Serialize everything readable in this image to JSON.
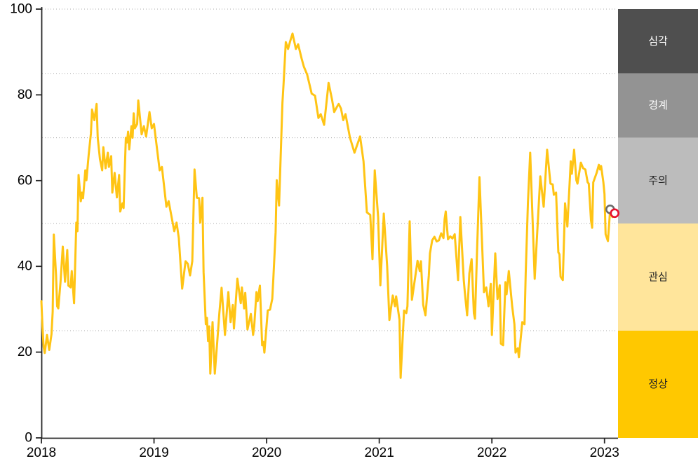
{
  "chart_data": {
    "type": "line",
    "title": "",
    "x_axis": {
      "min": 2018,
      "max": 2023.12,
      "ticks": [
        2018,
        2019,
        2020,
        2021,
        2022,
        2023
      ]
    },
    "y_axis": {
      "min": 0,
      "max": 100,
      "ticks": [
        0,
        20,
        40,
        60,
        80,
        100
      ]
    },
    "grid": {
      "horizontal_dotted_at": [
        25,
        50,
        70,
        85,
        100
      ],
      "color": "#a8a8a8"
    },
    "axis_color": "#262626",
    "tick_label_color": "#000000",
    "legend_position": "right-bands",
    "bands": [
      {
        "label": "심각",
        "from": 85,
        "to": 100,
        "color": "#4f4f4f",
        "text_color": "#ffffff"
      },
      {
        "label": "경계",
        "from": 70,
        "to": 85,
        "color": "#939393",
        "text_color": "#ffffff"
      },
      {
        "label": "주의",
        "from": 50,
        "to": 70,
        "color": "#bcbcbc",
        "text_color": "#262626"
      },
      {
        "label": "관심",
        "from": 25,
        "to": 50,
        "color": "#ffe59b",
        "text_color": "#262626"
      },
      {
        "label": "정상",
        "from": 0,
        "to": 25,
        "color": "#ffc800",
        "text_color": "#262626"
      }
    ],
    "series": [
      {
        "name": "index",
        "color": "#ffc414",
        "points": [
          [
            2018.0,
            31.9
          ],
          [
            2018.01,
            25.7
          ],
          [
            2018.02,
            21.2
          ],
          [
            2018.03,
            19.8
          ],
          [
            2018.05,
            24.0
          ],
          [
            2018.07,
            20.5
          ],
          [
            2018.09,
            24.2
          ],
          [
            2018.1,
            29.4
          ],
          [
            2018.11,
            47.4
          ],
          [
            2018.13,
            37.9
          ],
          [
            2018.14,
            30.7
          ],
          [
            2018.15,
            30.2
          ],
          [
            2018.17,
            36.4
          ],
          [
            2018.19,
            44.6
          ],
          [
            2018.21,
            36.4
          ],
          [
            2018.23,
            43.8
          ],
          [
            2018.24,
            35.5
          ],
          [
            2018.26,
            35.1
          ],
          [
            2018.27,
            38.9
          ],
          [
            2018.29,
            31.4
          ],
          [
            2018.31,
            50.2
          ],
          [
            2018.32,
            48.2
          ],
          [
            2018.33,
            61.3
          ],
          [
            2018.35,
            55.2
          ],
          [
            2018.36,
            57.2
          ],
          [
            2018.37,
            55.9
          ],
          [
            2018.39,
            62.4
          ],
          [
            2018.4,
            60.1
          ],
          [
            2018.42,
            66.0
          ],
          [
            2018.44,
            71.0
          ],
          [
            2018.45,
            76.6
          ],
          [
            2018.47,
            74.1
          ],
          [
            2018.49,
            77.9
          ],
          [
            2018.5,
            70.0
          ],
          [
            2018.52,
            65.0
          ],
          [
            2018.54,
            62.4
          ],
          [
            2018.55,
            67.8
          ],
          [
            2018.57,
            62.9
          ],
          [
            2018.59,
            66.5
          ],
          [
            2018.6,
            63.2
          ],
          [
            2018.62,
            65.7
          ],
          [
            2018.63,
            57.2
          ],
          [
            2018.65,
            61.8
          ],
          [
            2018.67,
            56.1
          ],
          [
            2018.69,
            61.3
          ],
          [
            2018.7,
            52.8
          ],
          [
            2018.72,
            54.7
          ],
          [
            2018.73,
            53.6
          ],
          [
            2018.74,
            62.0
          ],
          [
            2018.75,
            70.0
          ],
          [
            2018.76,
            68.9
          ],
          [
            2018.77,
            71.4
          ],
          [
            2018.78,
            67.3
          ],
          [
            2018.8,
            72.7
          ],
          [
            2018.81,
            70.0
          ],
          [
            2018.82,
            75.7
          ],
          [
            2018.83,
            72.2
          ],
          [
            2018.85,
            73.2
          ],
          [
            2018.86,
            78.7
          ],
          [
            2018.89,
            70.8
          ],
          [
            2018.91,
            72.7
          ],
          [
            2018.93,
            70.3
          ],
          [
            2018.96,
            76.0
          ],
          [
            2018.98,
            72.2
          ],
          [
            2019.0,
            73.2
          ],
          [
            2019.05,
            62.4
          ],
          [
            2019.07,
            63.2
          ],
          [
            2019.11,
            53.9
          ],
          [
            2019.13,
            55.2
          ],
          [
            2019.18,
            48.2
          ],
          [
            2019.2,
            50.2
          ],
          [
            2019.22,
            46.6
          ],
          [
            2019.25,
            34.8
          ],
          [
            2019.28,
            41.2
          ],
          [
            2019.3,
            40.6
          ],
          [
            2019.32,
            37.9
          ],
          [
            2019.34,
            41.2
          ],
          [
            2019.36,
            62.6
          ],
          [
            2019.38,
            56.0
          ],
          [
            2019.4,
            55.9
          ],
          [
            2019.41,
            50.2
          ],
          [
            2019.43,
            56.0
          ],
          [
            2019.44,
            38.7
          ],
          [
            2019.46,
            26.5
          ],
          [
            2019.47,
            28.0
          ],
          [
            2019.48,
            22.6
          ],
          [
            2019.49,
            26.0
          ],
          [
            2019.5,
            15.0
          ],
          [
            2019.52,
            27.0
          ],
          [
            2019.54,
            15.0
          ],
          [
            2019.56,
            22.0
          ],
          [
            2019.58,
            29.1
          ],
          [
            2019.6,
            35.0
          ],
          [
            2019.63,
            24.0
          ],
          [
            2019.66,
            34.0
          ],
          [
            2019.68,
            27.0
          ],
          [
            2019.7,
            31.0
          ],
          [
            2019.71,
            25.5
          ],
          [
            2019.72,
            29.4
          ],
          [
            2019.74,
            37.1
          ],
          [
            2019.77,
            31.4
          ],
          [
            2019.78,
            35.1
          ],
          [
            2019.8,
            30.2
          ],
          [
            2019.81,
            33.8
          ],
          [
            2019.83,
            25.3
          ],
          [
            2019.86,
            28.9
          ],
          [
            2019.88,
            24.0
          ],
          [
            2019.89,
            26.1
          ],
          [
            2019.91,
            34.0
          ],
          [
            2019.92,
            31.9
          ],
          [
            2019.94,
            35.5
          ],
          [
            2019.96,
            21.6
          ],
          [
            2019.97,
            22.4
          ],
          [
            2019.98,
            19.9
          ],
          [
            2020.01,
            29.7
          ],
          [
            2020.03,
            29.9
          ],
          [
            2020.05,
            32.4
          ],
          [
            2020.06,
            37.3
          ],
          [
            2020.08,
            48.0
          ],
          [
            2020.09,
            60.1
          ],
          [
            2020.11,
            54.2
          ],
          [
            2020.14,
            78.1
          ],
          [
            2020.15,
            82.5
          ],
          [
            2020.17,
            92.3
          ],
          [
            2020.19,
            90.7
          ],
          [
            2020.21,
            92.6
          ],
          [
            2020.23,
            94.3
          ],
          [
            2020.26,
            90.7
          ],
          [
            2020.28,
            91.8
          ],
          [
            2020.31,
            88.5
          ],
          [
            2020.33,
            86.6
          ],
          [
            2020.36,
            84.7
          ],
          [
            2020.4,
            80.3
          ],
          [
            2020.43,
            79.8
          ],
          [
            2020.46,
            74.6
          ],
          [
            2020.48,
            75.5
          ],
          [
            2020.51,
            73.0
          ],
          [
            2020.55,
            82.8
          ],
          [
            2020.58,
            79.0
          ],
          [
            2020.6,
            76.0
          ],
          [
            2020.62,
            77.0
          ],
          [
            2020.64,
            77.9
          ],
          [
            2020.66,
            76.8
          ],
          [
            2020.68,
            74.1
          ],
          [
            2020.7,
            75.5
          ],
          [
            2020.74,
            70.0
          ],
          [
            2020.78,
            66.5
          ],
          [
            2020.83,
            70.3
          ],
          [
            2020.86,
            64.5
          ],
          [
            2020.89,
            52.6
          ],
          [
            2020.92,
            52.0
          ],
          [
            2020.94,
            41.7
          ],
          [
            2020.96,
            62.4
          ],
          [
            2020.99,
            51.5
          ],
          [
            2021.01,
            35.6
          ],
          [
            2021.04,
            52.3
          ],
          [
            2021.07,
            40.0
          ],
          [
            2021.09,
            27.5
          ],
          [
            2021.12,
            33.2
          ],
          [
            2021.14,
            30.7
          ],
          [
            2021.15,
            33.0
          ],
          [
            2021.18,
            27.5
          ],
          [
            2021.19,
            14.0
          ],
          [
            2021.22,
            29.7
          ],
          [
            2021.24,
            29.1
          ],
          [
            2021.25,
            30.7
          ],
          [
            2021.27,
            50.5
          ],
          [
            2021.29,
            32.2
          ],
          [
            2021.34,
            41.3
          ],
          [
            2021.36,
            38.9
          ],
          [
            2021.37,
            41.2
          ],
          [
            2021.39,
            31.0
          ],
          [
            2021.41,
            28.6
          ],
          [
            2021.44,
            37.9
          ],
          [
            2021.45,
            43.0
          ],
          [
            2021.47,
            46.1
          ],
          [
            2021.49,
            46.9
          ],
          [
            2021.51,
            45.8
          ],
          [
            2021.53,
            46.1
          ],
          [
            2021.55,
            47.7
          ],
          [
            2021.57,
            46.6
          ],
          [
            2021.58,
            51.0
          ],
          [
            2021.59,
            52.8
          ],
          [
            2021.61,
            46.3
          ],
          [
            2021.63,
            47.0
          ],
          [
            2021.65,
            46.5
          ],
          [
            2021.67,
            47.5
          ],
          [
            2021.7,
            36.8
          ],
          [
            2021.72,
            51.5
          ],
          [
            2021.75,
            36.8
          ],
          [
            2021.76,
            33.8
          ],
          [
            2021.78,
            28.6
          ],
          [
            2021.8,
            38.4
          ],
          [
            2021.82,
            41.7
          ],
          [
            2021.84,
            29.1
          ],
          [
            2021.85,
            27.8
          ],
          [
            2021.87,
            45.0
          ],
          [
            2021.89,
            60.8
          ],
          [
            2021.93,
            34.0
          ],
          [
            2021.95,
            35.1
          ],
          [
            2021.97,
            30.7
          ],
          [
            2021.99,
            35.9
          ],
          [
            2022.0,
            24.0
          ],
          [
            2022.03,
            43.0
          ],
          [
            2022.05,
            32.4
          ],
          [
            2022.07,
            35.6
          ],
          [
            2022.08,
            22.0
          ],
          [
            2022.1,
            21.6
          ],
          [
            2022.12,
            36.3
          ],
          [
            2022.13,
            33.5
          ],
          [
            2022.15,
            38.9
          ],
          [
            2022.18,
            30.7
          ],
          [
            2022.2,
            26.5
          ],
          [
            2022.21,
            19.9
          ],
          [
            2022.23,
            20.9
          ],
          [
            2022.24,
            18.8
          ],
          [
            2022.27,
            27.0
          ],
          [
            2022.29,
            26.5
          ],
          [
            2022.3,
            38.4
          ],
          [
            2022.32,
            55.0
          ],
          [
            2022.34,
            66.5
          ],
          [
            2022.38,
            37.1
          ],
          [
            2022.43,
            61.0
          ],
          [
            2022.46,
            53.9
          ],
          [
            2022.49,
            67.2
          ],
          [
            2022.52,
            59.3
          ],
          [
            2022.54,
            59.1
          ],
          [
            2022.55,
            56.7
          ],
          [
            2022.57,
            57.2
          ],
          [
            2022.59,
            43.3
          ],
          [
            2022.6,
            42.8
          ],
          [
            2022.61,
            37.6
          ],
          [
            2022.63,
            36.8
          ],
          [
            2022.65,
            54.7
          ],
          [
            2022.67,
            49.3
          ],
          [
            2022.7,
            64.5
          ],
          [
            2022.71,
            61.6
          ],
          [
            2022.73,
            67.2
          ],
          [
            2022.75,
            60.1
          ],
          [
            2022.76,
            59.3
          ],
          [
            2022.79,
            64.2
          ],
          [
            2022.81,
            62.9
          ],
          [
            2022.83,
            62.6
          ],
          [
            2022.85,
            59.6
          ],
          [
            2022.86,
            59.3
          ],
          [
            2022.88,
            50.7
          ],
          [
            2022.89,
            49.0
          ],
          [
            2022.9,
            59.6
          ],
          [
            2022.93,
            61.8
          ],
          [
            2022.95,
            63.7
          ],
          [
            2022.96,
            62.6
          ],
          [
            2022.97,
            63.4
          ],
          [
            2022.99,
            59.6
          ],
          [
            2023.0,
            56.9
          ],
          [
            2023.01,
            47.5
          ],
          [
            2023.03,
            45.9
          ],
          [
            2023.05,
            53.3
          ],
          [
            2023.07,
            51.5
          ],
          [
            2023.09,
            52.4
          ]
        ]
      }
    ],
    "markers": [
      {
        "x": 2023.05,
        "y": 53.3,
        "style": "open-circle",
        "color": "#6b6b6b"
      },
      {
        "x": 2023.09,
        "y": 52.4,
        "style": "open-circle",
        "color": "#e8112d"
      }
    ]
  }
}
